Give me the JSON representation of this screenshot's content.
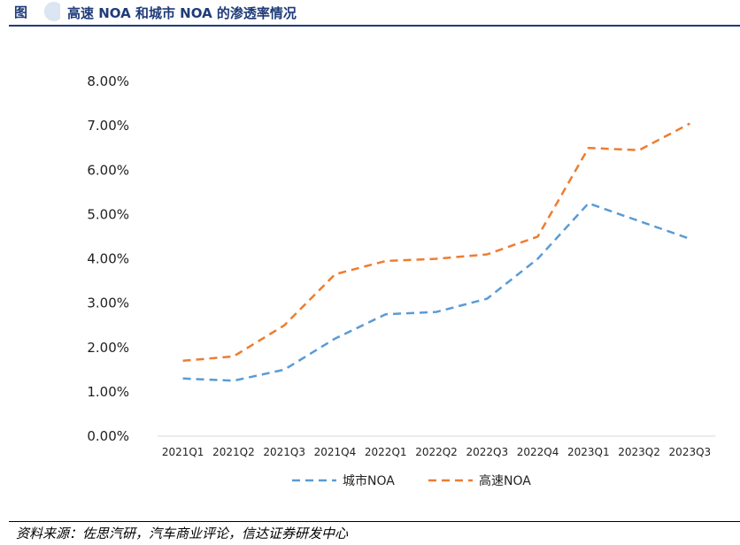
{
  "header": {
    "figure_tag": "图",
    "title": "高速 NOA 和城市 NOA 的渗透率情况"
  },
  "chart_data": {
    "type": "line",
    "title": "高速 NOA 和城市 NOA 的渗透率情况",
    "categories": [
      "2021Q1",
      "2021Q2",
      "2021Q3",
      "2021Q4",
      "2022Q1",
      "2022Q2",
      "2022Q3",
      "2022Q4",
      "2023Q1",
      "2023Q2",
      "2023Q3"
    ],
    "y_ticks": [
      "0.00%",
      "1.00%",
      "2.00%",
      "3.00%",
      "4.00%",
      "5.00%",
      "6.00%",
      "7.00%",
      "8.00%"
    ],
    "ylim": [
      0,
      8
    ],
    "y_unit": "%",
    "grid": false,
    "legend_position": "bottom",
    "series": [
      {
        "name": "城市NOA",
        "color": "#5b9bd5",
        "values": [
          1.3,
          1.25,
          1.5,
          2.2,
          2.75,
          2.8,
          3.1,
          4.0,
          5.25,
          4.85,
          4.45
        ]
      },
      {
        "name": "高速NOA",
        "color": "#ed7d31",
        "values": [
          1.7,
          1.8,
          2.5,
          3.65,
          3.95,
          4.0,
          4.1,
          4.5,
          6.5,
          6.45,
          7.05
        ]
      }
    ]
  },
  "footer": {
    "source": "资料来源：佐思汽研，汽车商业评论，信达证券研发中心"
  }
}
